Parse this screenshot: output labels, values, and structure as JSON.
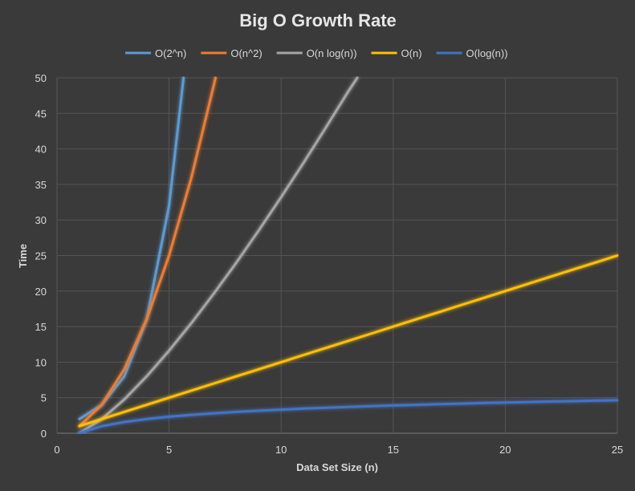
{
  "chart_data": {
    "type": "line",
    "title": "Big O Growth Rate",
    "xlabel": "Data Set Size (n)",
    "ylabel": "Time",
    "xlim": [
      0,
      25
    ],
    "ylim": [
      0,
      50
    ],
    "xticks": [
      0,
      5,
      10,
      15,
      20,
      25
    ],
    "yticks": [
      0,
      5,
      10,
      15,
      20,
      25,
      30,
      35,
      40,
      45,
      50
    ],
    "grid": true,
    "legend_position": "top",
    "series": [
      {
        "name": "O(2^n)",
        "color": "#5b9bd5",
        "x": [
          1,
          2,
          3,
          4,
          5,
          5.644
        ],
        "y": [
          2,
          4,
          8,
          16,
          32,
          50
        ]
      },
      {
        "name": "O(n^2)",
        "color": "#ed7d31",
        "x": [
          1,
          2,
          3,
          4,
          5,
          6,
          7,
          7.071
        ],
        "y": [
          1,
          4,
          9,
          16,
          25,
          36,
          49,
          50
        ]
      },
      {
        "name": "O(n log(n))",
        "color": "#a5a5a5",
        "x": [
          1,
          2,
          3,
          4,
          5,
          6,
          7,
          8,
          9,
          10,
          11,
          12,
          13,
          13.4
        ],
        "y": [
          0,
          2,
          4.75,
          8,
          11.61,
          15.51,
          19.65,
          24,
          28.53,
          33.22,
          38.05,
          43.02,
          48.11,
          50
        ]
      },
      {
        "name": "O(n)",
        "color": "#ffc000",
        "x": [
          1,
          2,
          3,
          4,
          5,
          6,
          7,
          8,
          9,
          10,
          11,
          12,
          13,
          14,
          15,
          16,
          17,
          18,
          19,
          20,
          21,
          22,
          23,
          24,
          25
        ],
        "y": [
          1,
          2,
          3,
          4,
          5,
          6,
          7,
          8,
          9,
          10,
          11,
          12,
          13,
          14,
          15,
          16,
          17,
          18,
          19,
          20,
          21,
          22,
          23,
          24,
          25
        ]
      },
      {
        "name": "O(log(n))",
        "color": "#4472c4",
        "x": [
          1,
          2,
          3,
          4,
          5,
          6,
          7,
          8,
          9,
          10,
          11,
          12,
          13,
          14,
          15,
          16,
          17,
          18,
          19,
          20,
          21,
          22,
          23,
          24,
          25
        ],
        "y": [
          0,
          1,
          1.58,
          2,
          2.32,
          2.58,
          2.81,
          3,
          3.17,
          3.32,
          3.46,
          3.58,
          3.7,
          3.81,
          3.91,
          4,
          4.09,
          4.17,
          4.25,
          4.32,
          4.39,
          4.46,
          4.52,
          4.58,
          4.64
        ]
      }
    ]
  }
}
